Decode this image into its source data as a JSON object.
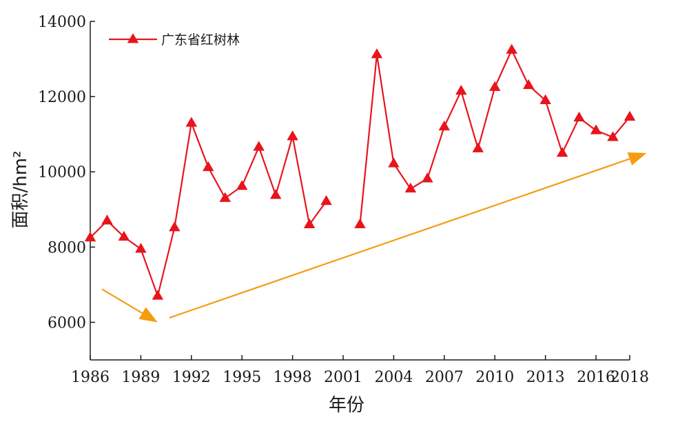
{
  "chart_data": {
    "type": "line",
    "title": "",
    "xlabel": "年份",
    "ylabel": "面积/hm²",
    "ylim": [
      5000,
      14000
    ],
    "xlim": [
      1986,
      2018
    ],
    "grid": false,
    "legend_position": "top-left",
    "yticks": [
      6000,
      8000,
      10000,
      12000,
      14000
    ],
    "xticks": [
      1986,
      1989,
      1992,
      1995,
      1998,
      2001,
      2004,
      2007,
      2010,
      2013,
      2016,
      2018
    ],
    "series": [
      {
        "name": "广东省红树林",
        "color": "#e8141c",
        "marker": "triangle",
        "points": [
          [
            1986,
            8250
          ],
          [
            1987,
            8700
          ],
          [
            1988,
            8270
          ],
          [
            1989,
            7950
          ],
          [
            1990,
            6700
          ],
          [
            1991,
            8520
          ],
          [
            1992,
            11300
          ],
          [
            1993,
            10120
          ],
          [
            1994,
            9300
          ],
          [
            1995,
            9620
          ],
          [
            1996,
            10660
          ],
          [
            1997,
            9380
          ],
          [
            1998,
            10940
          ],
          [
            1999,
            8600
          ],
          [
            2000,
            9220
          ],
          [
            2002,
            8600
          ],
          [
            2003,
            13120
          ],
          [
            2004,
            10220
          ],
          [
            2005,
            9550
          ],
          [
            2006,
            9820
          ],
          [
            2007,
            11200
          ],
          [
            2008,
            12150
          ],
          [
            2009,
            10620
          ],
          [
            2010,
            12250
          ],
          [
            2011,
            13240
          ],
          [
            2012,
            12300
          ],
          [
            2013,
            11900
          ],
          [
            2014,
            10500
          ],
          [
            2015,
            11440
          ],
          [
            2016,
            11100
          ],
          [
            2017,
            10920
          ],
          [
            2018,
            11460
          ]
        ],
        "segments": [
          [
            1986,
            2000
          ],
          [
            2002,
            2018
          ]
        ]
      }
    ],
    "annotations": [
      {
        "type": "arrow",
        "color": "#f39c12",
        "from": [
          1986.7,
          6880
        ],
        "to": [
          1990.0,
          6000
        ]
      },
      {
        "type": "arrow",
        "color": "#f39c12",
        "from": [
          1990.7,
          6120
        ],
        "to": [
          2019.0,
          10500
        ]
      }
    ]
  }
}
